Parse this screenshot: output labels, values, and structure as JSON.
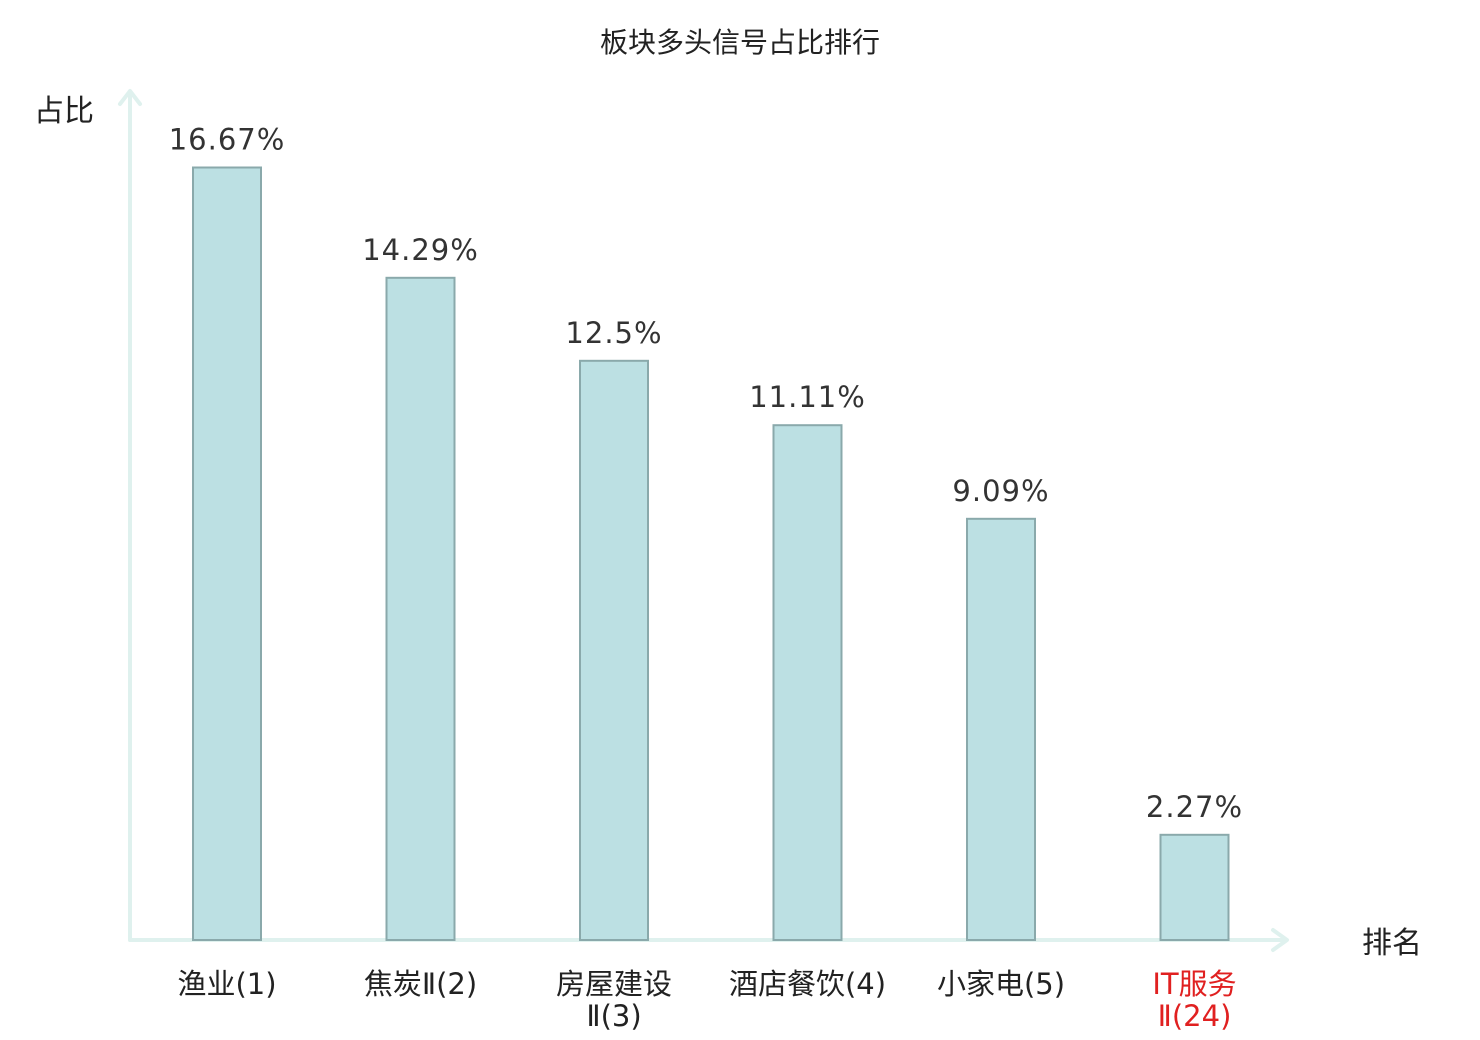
{
  "chart_data": {
    "type": "bar",
    "title": "板块多头信号占比排行",
    "ylabel": "占比",
    "xlabel": "排名",
    "ylim": [
      0,
      18.3
    ],
    "grid": false,
    "categories": [
      {
        "lines": [
          "渔业(1)"
        ],
        "highlight": false
      },
      {
        "lines": [
          "焦炭Ⅱ(2)"
        ],
        "highlight": false
      },
      {
        "lines": [
          "房屋建设",
          "Ⅱ(3)"
        ],
        "highlight": false
      },
      {
        "lines": [
          "酒店餐饮(4)"
        ],
        "highlight": false
      },
      {
        "lines": [
          "小家电(5)"
        ],
        "highlight": false
      },
      {
        "lines": [
          "IT服务",
          "Ⅱ(24)"
        ],
        "highlight": true
      }
    ],
    "values": [
      16.67,
      14.29,
      12.5,
      11.11,
      9.09,
      2.27
    ],
    "data_labels": [
      "16.67%",
      "14.29%",
      "12.5%",
      "11.11%",
      "9.09%",
      "2.27%"
    ],
    "colors": {
      "bar_fill": "#bce0e3",
      "bar_stroke": "#8aa9ab",
      "axis": "#dff1ee",
      "highlight_text": "#e02020"
    }
  }
}
